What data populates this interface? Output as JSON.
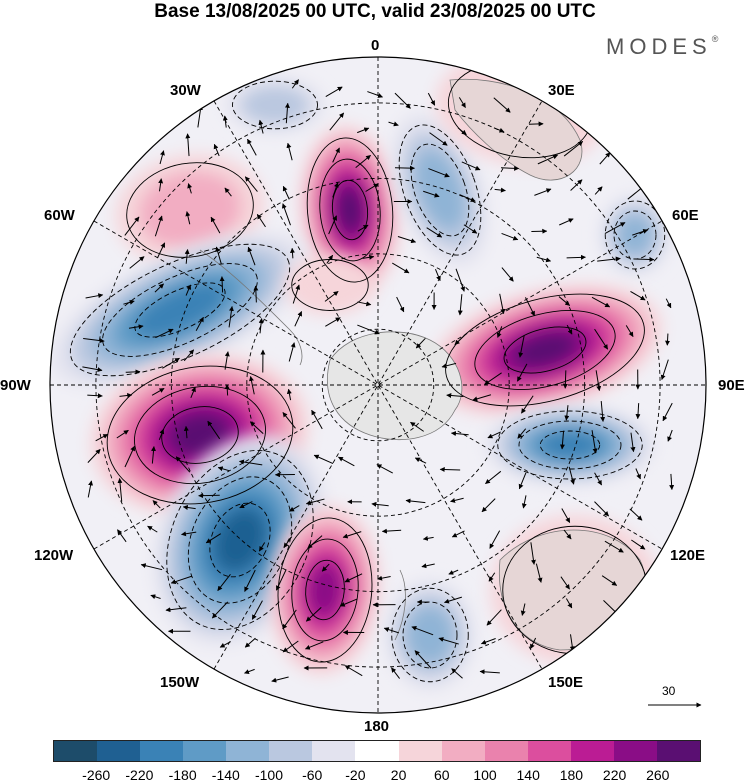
{
  "title": "Base 13/08/2025 00 UTC, valid 23/08/2025 00 UTC",
  "brand": "MODES",
  "brand_mark": "®",
  "longitude_labels": {
    "top": "0",
    "e30": "30E",
    "w30": "30W",
    "e60": "60E",
    "w60": "60W",
    "e90": "90E",
    "w90": "90W",
    "e120": "120E",
    "w120": "120W",
    "e150": "150E",
    "w150": "150W",
    "bottom": "180"
  },
  "vector_reference": {
    "label": "30"
  },
  "colorbar": {
    "colors": [
      "#1d4c6a",
      "#1f6092",
      "#3a82b6",
      "#5f9bc6",
      "#8fb4d6",
      "#bac8e0",
      "#e3e3ef",
      "#ffffff",
      "#f6d5da",
      "#f2adc2",
      "#ea82ad",
      "#dc4e9e",
      "#bb1c94",
      "#8a0d86",
      "#5a0f72"
    ],
    "ticks": [
      "-260",
      "-220",
      "-180",
      "-140",
      "-100",
      "-60",
      "-20",
      "20",
      "60",
      "100",
      "140",
      "180",
      "220",
      "260"
    ]
  },
  "colors": {
    "land": "#e6e6e6",
    "background": "#ffffff"
  }
}
